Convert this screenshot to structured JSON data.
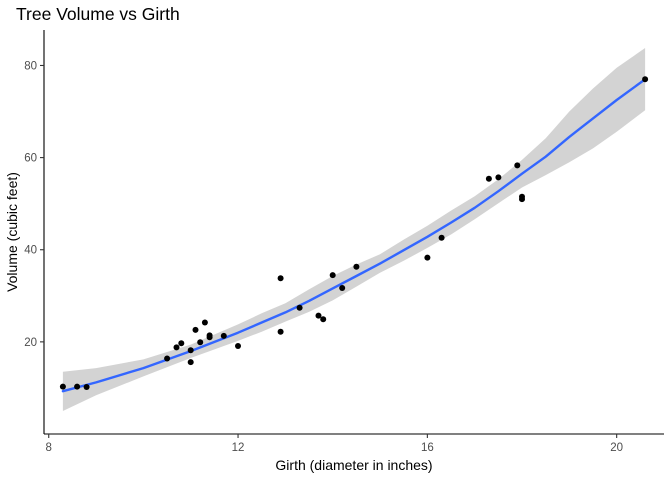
{
  "chart_data": {
    "type": "scatter",
    "title": "Tree Volume vs Girth",
    "xlabel": "Girth (diameter in inches)",
    "ylabel": "Volume (cubic feet)",
    "xlim": [
      7.9,
      21.0
    ],
    "ylim": [
      0,
      87.7
    ],
    "x_ticks": [
      8,
      12,
      16,
      20
    ],
    "y_ticks": [
      20,
      40,
      60,
      80
    ],
    "grid": false,
    "legend": "none",
    "colors": {
      "points": "#000000",
      "fit_line": "#3366ff",
      "confidence_band": "#d3d3d3",
      "text": "#000000",
      "tick_text": "#4d4d4d"
    },
    "points": [
      {
        "x": 8.3,
        "y": 10.3
      },
      {
        "x": 8.6,
        "y": 10.3
      },
      {
        "x": 8.8,
        "y": 10.2
      },
      {
        "x": 10.5,
        "y": 16.4
      },
      {
        "x": 10.7,
        "y": 18.8
      },
      {
        "x": 10.8,
        "y": 19.7
      },
      {
        "x": 11.0,
        "y": 15.6
      },
      {
        "x": 11.0,
        "y": 18.2
      },
      {
        "x": 11.1,
        "y": 22.6
      },
      {
        "x": 11.2,
        "y": 19.9
      },
      {
        "x": 11.3,
        "y": 24.2
      },
      {
        "x": 11.4,
        "y": 21.0
      },
      {
        "x": 11.4,
        "y": 21.4
      },
      {
        "x": 11.7,
        "y": 21.3
      },
      {
        "x": 12.0,
        "y": 19.1
      },
      {
        "x": 12.9,
        "y": 22.2
      },
      {
        "x": 12.9,
        "y": 33.8
      },
      {
        "x": 13.3,
        "y": 27.4
      },
      {
        "x": 13.7,
        "y": 25.7
      },
      {
        "x": 13.8,
        "y": 24.9
      },
      {
        "x": 14.0,
        "y": 34.5
      },
      {
        "x": 14.2,
        "y": 31.7
      },
      {
        "x": 14.5,
        "y": 36.3
      },
      {
        "x": 16.0,
        "y": 38.3
      },
      {
        "x": 16.3,
        "y": 42.6
      },
      {
        "x": 17.3,
        "y": 55.4
      },
      {
        "x": 17.5,
        "y": 55.7
      },
      {
        "x": 17.9,
        "y": 58.3
      },
      {
        "x": 18.0,
        "y": 51.5
      },
      {
        "x": 18.0,
        "y": 51.0
      },
      {
        "x": 20.6,
        "y": 77.0
      }
    ],
    "smooth": {
      "method": "loess",
      "x": [
        8.3,
        9.0,
        10.0,
        11.0,
        12.0,
        12.5,
        13.0,
        13.5,
        14.0,
        14.5,
        15.0,
        15.5,
        16.0,
        16.5,
        17.0,
        17.5,
        18.0,
        18.5,
        19.0,
        19.5,
        20.0,
        20.6
      ],
      "y": [
        9.3,
        11.2,
        14.3,
        18.0,
        22.0,
        24.2,
        26.4,
        28.9,
        31.6,
        34.3,
        37.0,
        39.9,
        42.8,
        45.9,
        49.1,
        52.7,
        56.5,
        60.2,
        64.5,
        68.5,
        72.5,
        77.0
      ],
      "lower": [
        5.0,
        8.4,
        12.5,
        16.5,
        20.2,
        22.2,
        24.4,
        26.5,
        29.0,
        32.0,
        35.0,
        37.6,
        40.4,
        43.3,
        46.6,
        50.1,
        53.5,
        56.2,
        59.0,
        62.0,
        65.6,
        70.3
      ],
      "upper": [
        13.5,
        14.3,
        16.2,
        19.4,
        23.8,
        26.2,
        28.4,
        31.4,
        34.3,
        36.8,
        39.0,
        42.2,
        45.2,
        48.5,
        51.6,
        55.3,
        59.5,
        64.2,
        70.0,
        75.0,
        79.5,
        83.8
      ]
    }
  }
}
